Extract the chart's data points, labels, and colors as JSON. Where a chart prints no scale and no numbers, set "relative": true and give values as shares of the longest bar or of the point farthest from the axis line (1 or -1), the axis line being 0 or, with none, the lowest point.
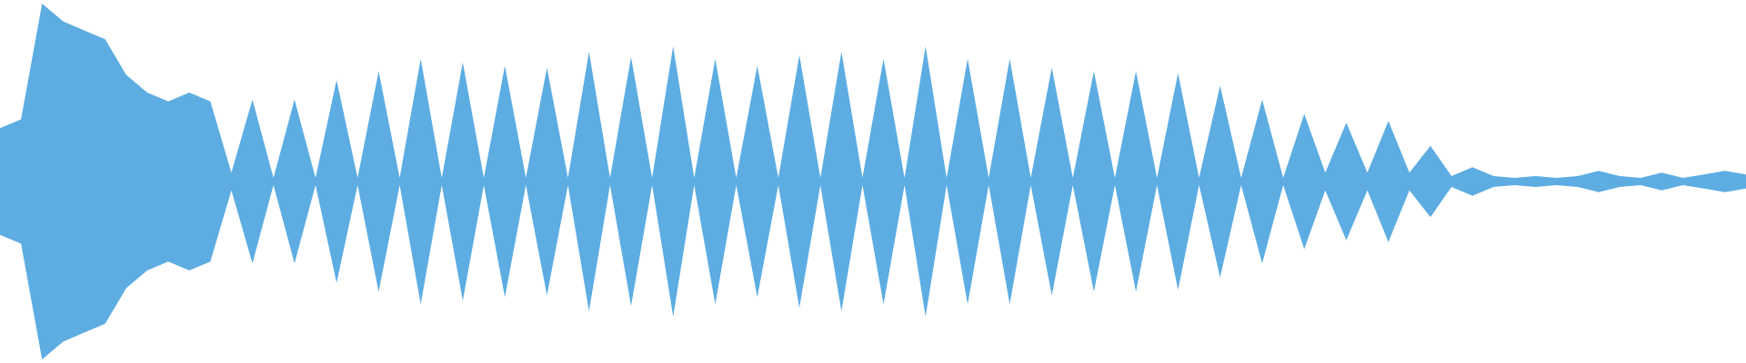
{
  "chart_data": {
    "type": "area",
    "relative": true,
    "categories": [
      null,
      null,
      null,
      null,
      null,
      null,
      null,
      null,
      null,
      null,
      null,
      null,
      null,
      null,
      null,
      null,
      null,
      null,
      null,
      null,
      null,
      null,
      null,
      null,
      null,
      null,
      null,
      null,
      null,
      null,
      null,
      null,
      null,
      null,
      null,
      null,
      null,
      null,
      null,
      null,
      null,
      null,
      null,
      null,
      null,
      null,
      null,
      null,
      null,
      null,
      null,
      null,
      null,
      null,
      null,
      null,
      null,
      null,
      null,
      null,
      null,
      null,
      null,
      null,
      null,
      null,
      null,
      null,
      null,
      null,
      null,
      null,
      null,
      null,
      null,
      null,
      null,
      null,
      null,
      null,
      null,
      null,
      null,
      null
    ],
    "series": [
      {
        "color": "#5dade2",
        "values": [
          0.3,
          0.35,
          1.0,
          0.9,
          0.85,
          0.8,
          0.6,
          0.5,
          0.45,
          0.5,
          0.45,
          0.05,
          0.46,
          0.02,
          0.46,
          0.02,
          0.57,
          0.02,
          0.62,
          0.02,
          0.69,
          0.02,
          0.67,
          0.02,
          0.65,
          0.02,
          0.64,
          0.02,
          0.73,
          0.02,
          0.7,
          0.02,
          0.76,
          0.02,
          0.69,
          0.02,
          0.65,
          0.02,
          0.71,
          0.02,
          0.73,
          0.02,
          0.69,
          0.02,
          0.76,
          0.02,
          0.69,
          0.02,
          0.69,
          0.02,
          0.64,
          0.02,
          0.62,
          0.02,
          0.62,
          0.02,
          0.61,
          0.02,
          0.54,
          0.02,
          0.46,
          0.02,
          0.38,
          0.05,
          0.33,
          0.05,
          0.34,
          0.05,
          0.2,
          0.03,
          0.08,
          0.03,
          0.02,
          0.03,
          0.02,
          0.03,
          0.06,
          0.03,
          0.02,
          0.05,
          0.02,
          0.04,
          0.06,
          0.04
        ]
      }
    ]
  }
}
